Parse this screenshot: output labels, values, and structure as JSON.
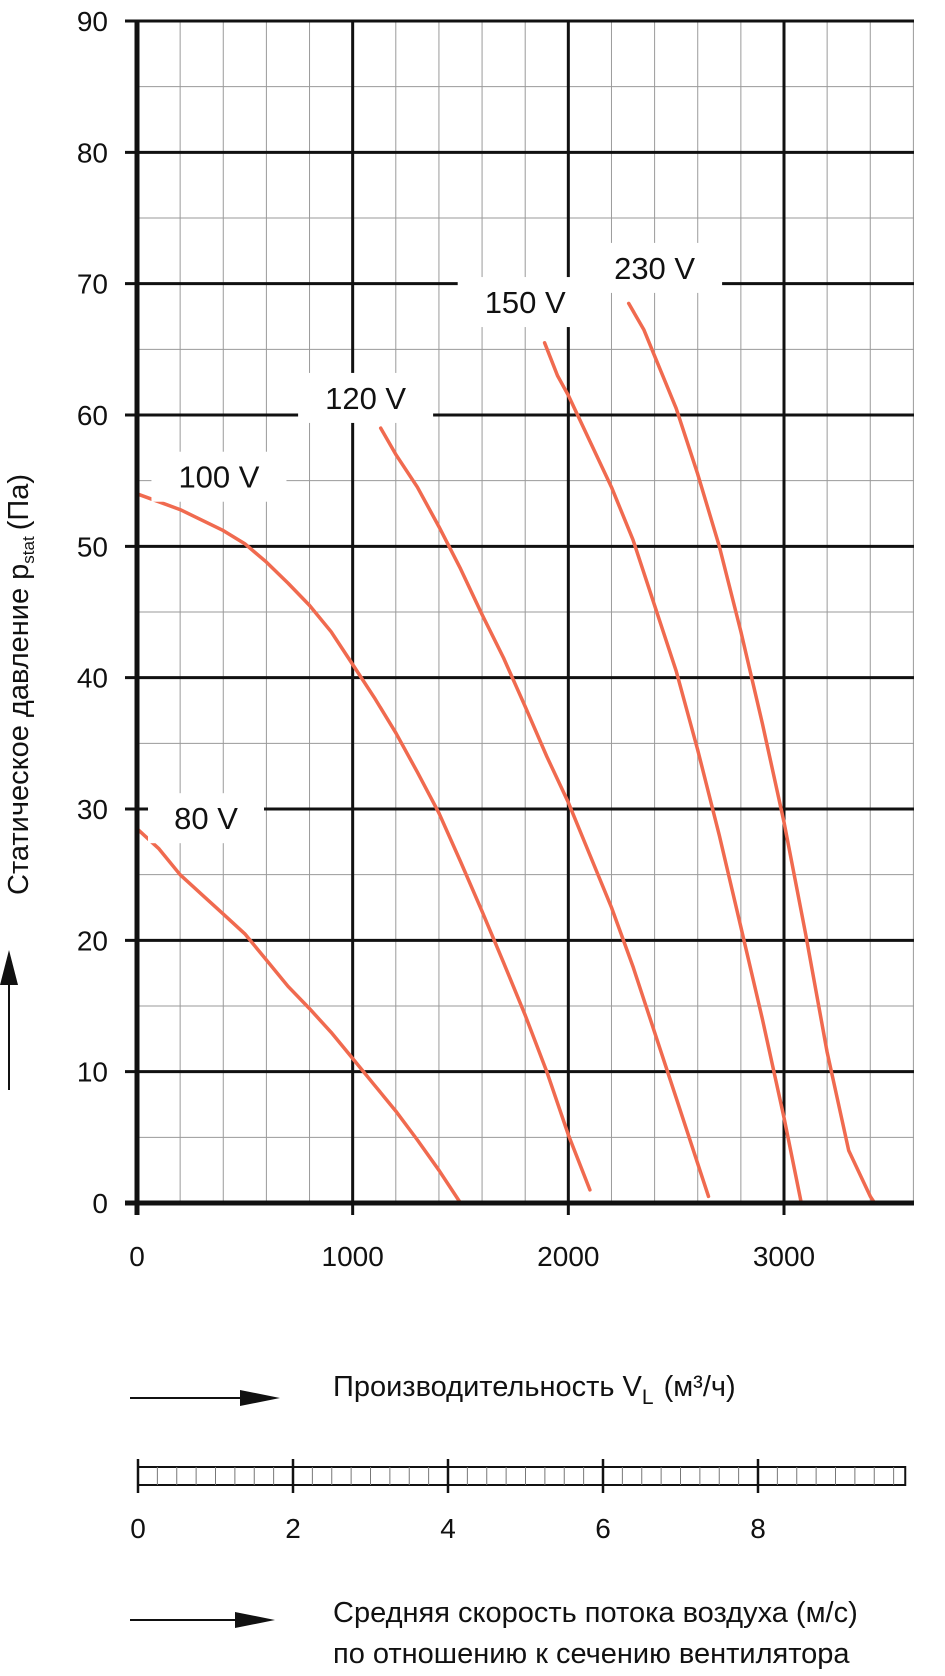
{
  "chart_data": {
    "type": "line",
    "xlabel": "Производительность V",
    "xlabel_sub": "L",
    "xlabel_unit": "(м³/ч)",
    "ylabel": "Статическое давление p",
    "ylabel_sub": "stat",
    "ylabel_unit": "(Па)",
    "xlim": [
      0,
      3600
    ],
    "ylim": [
      0,
      90
    ],
    "x_ticks": [
      0,
      1000,
      2000,
      3000
    ],
    "y_ticks": [
      0,
      10,
      20,
      30,
      40,
      50,
      60,
      70,
      80,
      90
    ],
    "grid": true,
    "series_color": "#f06a4f",
    "series": [
      {
        "name": "80 V",
        "x": [
          0,
          100,
          200,
          300,
          400,
          500,
          600,
          700,
          800,
          900,
          1000,
          1100,
          1200,
          1300,
          1400,
          1500
        ],
        "y": [
          28.5,
          27,
          25,
          23.5,
          22,
          20.5,
          18.5,
          16.5,
          14.8,
          13,
          11,
          9,
          7,
          4.8,
          2.5,
          0
        ]
      },
      {
        "name": "100 V",
        "x": [
          0,
          100,
          200,
          300,
          400,
          500,
          600,
          700,
          800,
          900,
          1000,
          1100,
          1200,
          1300,
          1400,
          1500,
          1600,
          1700,
          1800,
          1900,
          2000,
          2100
        ],
        "y": [
          54,
          53.4,
          52.8,
          52,
          51.2,
          50.2,
          48.8,
          47.2,
          45.5,
          43.5,
          41,
          38.5,
          35.8,
          32.8,
          29.7,
          26,
          22.2,
          18.3,
          14.3,
          10,
          5.2,
          1
        ]
      },
      {
        "name": "120 V",
        "x": [
          1130,
          1200,
          1300,
          1400,
          1500,
          1600,
          1700,
          1800,
          1900,
          2000,
          2100,
          2200,
          2300,
          2400,
          2500,
          2600,
          2650
        ],
        "y": [
          59,
          57,
          54.5,
          51.5,
          48.3,
          44.8,
          41.5,
          37.8,
          34,
          30.5,
          26.5,
          22.5,
          18,
          13,
          8,
          3,
          0.5
        ]
      },
      {
        "name": "150 V",
        "x": [
          1890,
          1950,
          2000,
          2100,
          2200,
          2300,
          2400,
          2500,
          2600,
          2700,
          2800,
          2900,
          3000,
          3080
        ],
        "y": [
          65.5,
          63,
          61.5,
          58,
          54.5,
          50.5,
          45.5,
          40.5,
          34.5,
          28,
          21,
          14,
          6.5,
          0
        ]
      },
      {
        "name": "230 V",
        "x": [
          2280,
          2350,
          2400,
          2500,
          2600,
          2700,
          2800,
          2900,
          3000,
          3100,
          3200,
          3300,
          3400,
          3420
        ],
        "y": [
          68.5,
          66.5,
          64.5,
          60.5,
          55.5,
          50,
          43.5,
          36.5,
          29,
          20.5,
          11.5,
          4,
          0.5,
          0
        ]
      }
    ],
    "curve_labels": [
      {
        "text": "80 V",
        "x": 320,
        "y": 29.3
      },
      {
        "text": "100 V",
        "x": 380,
        "y": 55.3
      },
      {
        "text": "120 V",
        "x": 1060,
        "y": 61.3
      },
      {
        "text": "150 V",
        "x": 1800,
        "y": 68.6
      },
      {
        "text": "230 V",
        "x": 2400,
        "y": 71.2
      }
    ]
  },
  "velocity_scale": {
    "ticks": [
      0,
      2,
      4,
      6,
      8
    ],
    "max": 9.9,
    "label_line1": "Средняя скорость потока воздуха (м/с)",
    "label_line2": "по отношению к сечению вентилятора"
  }
}
